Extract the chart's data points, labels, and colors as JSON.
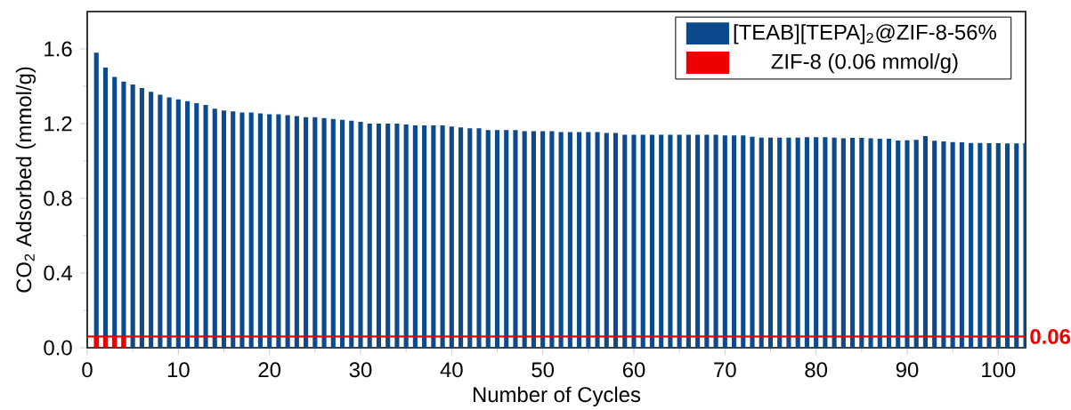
{
  "chart_data": {
    "type": "bar",
    "xlabel": "Number of Cycles",
    "ylabel": "CO$_{2}$ Adsorbed (mmol/g)",
    "x": [
      1,
      2,
      3,
      4,
      5,
      6,
      7,
      8,
      9,
      10,
      11,
      12,
      13,
      14,
      15,
      16,
      17,
      18,
      19,
      20,
      21,
      22,
      23,
      24,
      25,
      26,
      27,
      28,
      29,
      30,
      31,
      32,
      33,
      34,
      35,
      36,
      37,
      38,
      39,
      40,
      41,
      42,
      43,
      44,
      45,
      46,
      47,
      48,
      49,
      50,
      51,
      52,
      53,
      54,
      55,
      56,
      57,
      58,
      59,
      60,
      61,
      62,
      63,
      64,
      65,
      66,
      67,
      68,
      69,
      70,
      71,
      72,
      73,
      74,
      75,
      76,
      77,
      78,
      79,
      80,
      81,
      82,
      83,
      84,
      85,
      86,
      87,
      88,
      89,
      90,
      91,
      92,
      93,
      94,
      95,
      96,
      97,
      98,
      99,
      100,
      101,
      102,
      103
    ],
    "series": [
      {
        "name": "[TEAB][TEPA]$_{2}$@ZIF-8-56%",
        "color": "#0b4a8c",
        "values": [
          1.58,
          1.5,
          1.45,
          1.425,
          1.41,
          1.39,
          1.37,
          1.355,
          1.34,
          1.33,
          1.32,
          1.31,
          1.3,
          1.28,
          1.27,
          1.265,
          1.26,
          1.26,
          1.255,
          1.25,
          1.25,
          1.245,
          1.24,
          1.235,
          1.235,
          1.23,
          1.225,
          1.22,
          1.215,
          1.21,
          1.2,
          1.2,
          1.2,
          1.2,
          1.195,
          1.19,
          1.19,
          1.19,
          1.19,
          1.185,
          1.18,
          1.175,
          1.175,
          1.165,
          1.165,
          1.165,
          1.165,
          1.16,
          1.16,
          1.16,
          1.16,
          1.155,
          1.155,
          1.155,
          1.155,
          1.155,
          1.15,
          1.15,
          1.14,
          1.14,
          1.14,
          1.14,
          1.14,
          1.14,
          1.14,
          1.14,
          1.14,
          1.14,
          1.14,
          1.137,
          1.137,
          1.137,
          1.13,
          1.125,
          1.125,
          1.125,
          1.125,
          1.125,
          1.127,
          1.127,
          1.127,
          1.125,
          1.121,
          1.124,
          1.124,
          1.122,
          1.119,
          1.119,
          1.11,
          1.111,
          1.113,
          1.133,
          1.108,
          1.105,
          1.101,
          1.1,
          1.097,
          1.097,
          1.095,
          1.095,
          1.094,
          1.094,
          1.097
        ]
      },
      {
        "name": "ZIF-8 (0.06 mmol/g)",
        "color": "#ee0000",
        "x": [
          1,
          2,
          3,
          4
        ],
        "values": [
          0.06,
          0.06,
          0.06,
          0.06
        ]
      }
    ],
    "xlim": [
      0,
      103
    ],
    "xticks": [
      0,
      10,
      20,
      30,
      40,
      50,
      60,
      70,
      80,
      90,
      100
    ],
    "ylim": [
      0,
      1.8
    ],
    "yticks": [
      {
        "value": 0,
        "label": "0.0"
      },
      {
        "value": 0.4,
        "label": "0.4"
      },
      {
        "value": 0.8,
        "label": "0.8"
      },
      {
        "value": 1.2,
        "label": "1.2"
      },
      {
        "value": 1.6,
        "label": "1.6"
      }
    ],
    "ref_lines": [
      {
        "axis": "y",
        "value": 0.06,
        "label": "0.06",
        "color": "#ee0000"
      }
    ],
    "legend": "top right",
    "grid": false
  }
}
